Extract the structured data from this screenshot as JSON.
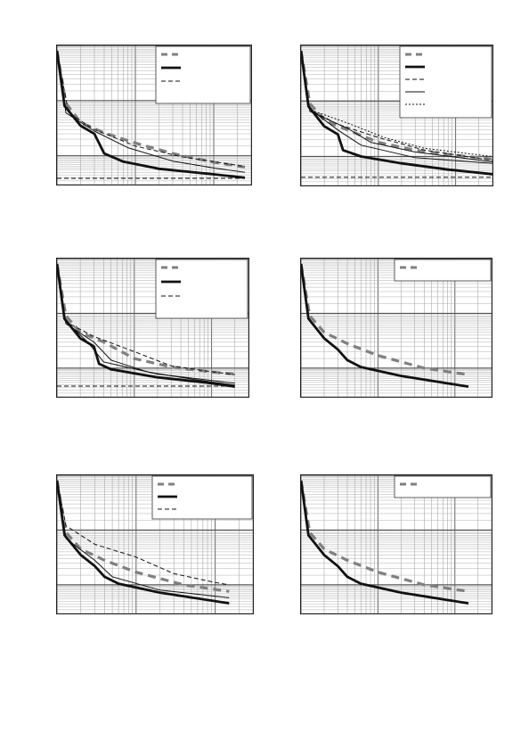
{
  "chart_data": [
    {
      "type": "line",
      "grid": true,
      "x_scale": "log",
      "y_scale": "log",
      "legend_position": "top-right",
      "series": [
        {
          "style": "gray-thick-dashed",
          "points": [
            [
              1.0,
              800
            ],
            [
              1.3,
              90
            ],
            [
              2,
              40
            ],
            [
              4,
              26
            ],
            [
              10,
              17
            ],
            [
              30,
              11
            ],
            [
              100,
              7.6
            ],
            [
              250,
              6.2
            ]
          ]
        },
        {
          "style": "black-thick",
          "points": [
            [
              1.0,
              800
            ],
            [
              1.25,
              80
            ],
            [
              2,
              35
            ],
            [
              3,
              25
            ],
            [
              4,
              11
            ],
            [
              7,
              7.8
            ],
            [
              20,
              5.8
            ],
            [
              100,
              4.6
            ],
            [
              250,
              4.0
            ]
          ]
        },
        {
          "style": "black-thin-dashed",
          "points": [
            [
              1.0,
              800
            ],
            [
              1.4,
              60
            ],
            [
              3,
              30
            ],
            [
              10,
              15
            ],
            [
              40,
              9.5
            ],
            [
              250,
              6.4
            ]
          ]
        },
        {
          "style": "black-thin",
          "points": [
            [
              1.0,
              800
            ],
            [
              1.3,
              60
            ],
            [
              3,
              28
            ],
            [
              8,
              14
            ],
            [
              30,
              8
            ],
            [
              100,
              6
            ],
            [
              250,
              5
            ]
          ]
        },
        {
          "style": "black-thin-dashed",
          "points": [
            [
              1.0,
              3.9
            ],
            [
              250,
              3.9
            ]
          ]
        }
      ]
    },
    {
      "type": "line",
      "grid": true,
      "x_scale": "log",
      "y_scale": "log",
      "legend_position": "top-right",
      "series": [
        {
          "style": "gray-thick-dashed",
          "points": [
            [
              1.0,
              800
            ],
            [
              1.3,
              90
            ],
            [
              2,
              45
            ],
            [
              4,
              30
            ],
            [
              10,
              18
            ],
            [
              30,
              13
            ],
            [
              100,
              10.5
            ],
            [
              300,
              9
            ]
          ]
        },
        {
          "style": "black-thick",
          "points": [
            [
              1.0,
              800
            ],
            [
              1.25,
              80
            ],
            [
              2,
              35
            ],
            [
              3,
              25
            ],
            [
              3.5,
              13
            ],
            [
              6,
              10
            ],
            [
              20,
              7.5
            ],
            [
              80,
              5.8
            ],
            [
              300,
              4.8
            ]
          ]
        },
        {
          "style": "black-thin-dashed",
          "points": [
            [
              1.0,
              800
            ],
            [
              1.3,
              70
            ],
            [
              3,
              38
            ],
            [
              10,
              22
            ],
            [
              40,
              13
            ],
            [
              300,
              8.5
            ]
          ]
        },
        {
          "style": "black-thin",
          "points": [
            [
              1.0,
              800
            ],
            [
              1.3,
              65
            ],
            [
              4,
              32
            ],
            [
              8,
              18
            ],
            [
              30,
              12
            ],
            [
              300,
              8
            ]
          ]
        },
        {
          "style": "black-thin-dotted",
          "points": [
            [
              1.0,
              800
            ],
            [
              1.3,
              70
            ],
            [
              4,
              40
            ],
            [
              12,
              22
            ],
            [
              40,
              14
            ],
            [
              300,
              10
            ]
          ]
        },
        {
          "style": "black-thin",
          "points": [
            [
              1.0,
              800
            ],
            [
              1.25,
              75
            ],
            [
              3,
              30
            ],
            [
              6,
              16
            ],
            [
              30,
              9.5
            ],
            [
              300,
              7.5
            ]
          ]
        },
        {
          "style": "black-thin-dashed",
          "points": [
            [
              1.0,
              4.2
            ],
            [
              300,
              4.2
            ]
          ]
        }
      ]
    },
    {
      "type": "line",
      "grid": true,
      "x_scale": "log",
      "y_scale": "log",
      "legend_position": "top-right",
      "series": [
        {
          "style": "gray-thick-dashed",
          "points": [
            [
              1.0,
              800
            ],
            [
              1.3,
              90
            ],
            [
              2,
              45
            ],
            [
              4,
              30
            ],
            [
              10,
              15
            ],
            [
              30,
              10.5
            ],
            [
              100,
              8.5
            ],
            [
              200,
              7.8
            ]
          ]
        },
        {
          "style": "black-thick",
          "points": [
            [
              1.0,
              800
            ],
            [
              1.25,
              80
            ],
            [
              2,
              35
            ],
            [
              3,
              25
            ],
            [
              3.5,
              12
            ],
            [
              5,
              9.5
            ],
            [
              20,
              6.8
            ],
            [
              80,
              5.5
            ],
            [
              200,
              4.6
            ]
          ]
        },
        {
          "style": "black-thin-dashed",
          "points": [
            [
              1.0,
              800
            ],
            [
              1.3,
              70
            ],
            [
              3,
              38
            ],
            [
              10,
              20
            ],
            [
              30,
              11
            ],
            [
              100,
              8.6
            ],
            [
              200,
              7.6
            ]
          ]
        },
        {
          "style": "black-thin",
          "points": [
            [
              1.0,
              800
            ],
            [
              1.3,
              65
            ],
            [
              3,
              30
            ],
            [
              5,
              14
            ],
            [
              15,
              8.5
            ],
            [
              60,
              6.2
            ],
            [
              200,
              4.9
            ]
          ]
        },
        {
          "style": "black-thin",
          "points": [
            [
              1.0,
              800
            ],
            [
              1.25,
              75
            ],
            [
              2.5,
              30
            ],
            [
              4,
              13
            ],
            [
              20,
              7.8
            ],
            [
              200,
              5.3
            ]
          ]
        },
        {
          "style": "black-thin-dashed",
          "points": [
            [
              1.0,
              4.7
            ],
            [
              200,
              4.7
            ]
          ]
        }
      ]
    },
    {
      "type": "line",
      "grid": true,
      "x_scale": "log",
      "y_scale": "log",
      "legend_position": "top-right",
      "series": [
        {
          "style": "gray-thick-dashed",
          "points": [
            [
              1.0,
              800
            ],
            [
              1.3,
              90
            ],
            [
              2,
              45
            ],
            [
              4,
              28
            ],
            [
              10,
              17
            ],
            [
              40,
              10
            ],
            [
              150,
              7.6
            ]
          ]
        },
        {
          "style": "black-thick",
          "points": [
            [
              1.0,
              800
            ],
            [
              1.25,
              80
            ],
            [
              2,
              35
            ],
            [
              3,
              22
            ],
            [
              4,
              14
            ],
            [
              6,
              10.5
            ],
            [
              20,
              7.2
            ],
            [
              150,
              4.6
            ]
          ]
        }
      ]
    },
    {
      "type": "line",
      "grid": true,
      "x_scale": "log",
      "y_scale": "log",
      "legend_position": "top-right",
      "series": [
        {
          "style": "gray-thick-dashed",
          "points": [
            [
              1.0,
              800
            ],
            [
              1.3,
              90
            ],
            [
              2,
              45
            ],
            [
              4,
              28
            ],
            [
              10,
              17
            ],
            [
              40,
              10
            ],
            [
              150,
              7.6
            ]
          ]
        },
        {
          "style": "black-thick",
          "points": [
            [
              1.0,
              800
            ],
            [
              1.25,
              80
            ],
            [
              2,
              35
            ],
            [
              3,
              22
            ],
            [
              4,
              14
            ],
            [
              6,
              10.5
            ],
            [
              20,
              7.2
            ],
            [
              150,
              4.6
            ]
          ]
        },
        {
          "style": "black-thin-dashed",
          "points": [
            [
              1.0,
              800
            ],
            [
              1.3,
              120
            ],
            [
              3,
              55
            ],
            [
              10,
              32
            ],
            [
              30,
              16
            ],
            [
              100,
              11
            ],
            [
              150,
              10
            ]
          ]
        },
        {
          "style": "black-thin",
          "points": [
            [
              1.0,
              800
            ],
            [
              1.3,
              70
            ],
            [
              3,
              28
            ],
            [
              5,
              14
            ],
            [
              20,
              8
            ],
            [
              100,
              6.2
            ],
            [
              150,
              5.8
            ]
          ]
        }
      ]
    },
    {
      "type": "line",
      "grid": true,
      "x_scale": "log",
      "y_scale": "log",
      "legend_position": "top-right",
      "series": [
        {
          "style": "gray-thick-dashed",
          "points": [
            [
              1.0,
              800
            ],
            [
              1.3,
              90
            ],
            [
              2,
              45
            ],
            [
              4,
              28
            ],
            [
              10,
              17
            ],
            [
              40,
              10
            ],
            [
              150,
              7.6
            ]
          ]
        },
        {
          "style": "black-thick",
          "points": [
            [
              1.0,
              800
            ],
            [
              1.25,
              80
            ],
            [
              2,
              35
            ],
            [
              3,
              22
            ],
            [
              4,
              14
            ],
            [
              6,
              10.5
            ],
            [
              20,
              7.2
            ],
            [
              150,
              4.6
            ]
          ]
        }
      ]
    }
  ]
}
